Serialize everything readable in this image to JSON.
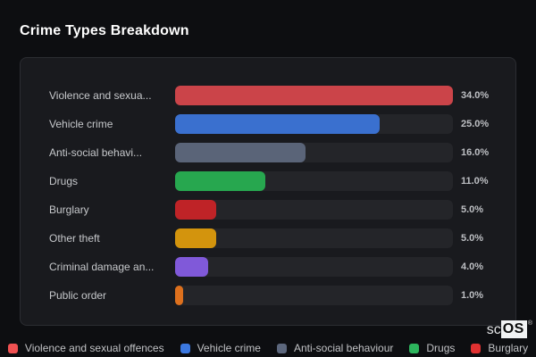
{
  "header": {
    "title": "Crime Types Breakdown"
  },
  "colors": {
    "page_background": "#0d0e11",
    "panel_background": "#191a1e",
    "panel_border": "#2b2d32",
    "bar_track": "#242529",
    "label_text": "#c6c8cb",
    "value_text": "#bdbfc3"
  },
  "chart": {
    "scale_max": 34,
    "rows": [
      {
        "display_label": "Violence and sexua...",
        "value": 34.0,
        "value_label": "34.0%",
        "color": "#cb4449"
      },
      {
        "display_label": "Vehicle crime",
        "value": 25.0,
        "value_label": "25.0%",
        "color": "#3a70cf"
      },
      {
        "display_label": "Anti-social behavi...",
        "value": 16.0,
        "value_label": "16.0%",
        "color": "#5a6478"
      },
      {
        "display_label": "Drugs",
        "value": 11.0,
        "value_label": "11.0%",
        "color": "#27a74f"
      },
      {
        "display_label": "Burglary",
        "value": 5.0,
        "value_label": "5.0%",
        "color": "#bf2327"
      },
      {
        "display_label": "Other theft",
        "value": 5.0,
        "value_label": "5.0%",
        "color": "#d3940d"
      },
      {
        "display_label": "Criminal damage an...",
        "value": 4.0,
        "value_label": "4.0%",
        "color": "#8059d9"
      },
      {
        "display_label": "Public order",
        "value": 1.0,
        "value_label": "1.0%",
        "color": "#dd701d"
      }
    ]
  },
  "legend": {
    "items": [
      {
        "label": "Violence and sexual offences",
        "color": "#f05152"
      },
      {
        "label": "Vehicle crime",
        "color": "#3b78e0"
      },
      {
        "label": "Anti-social behaviour",
        "color": "#5c677d"
      },
      {
        "label": "Drugs",
        "color": "#2db55d"
      },
      {
        "label": "Burglary",
        "color": "#e03131"
      }
    ]
  },
  "logo": {
    "prefix": "sc",
    "boxed": "OS",
    "registered": "®"
  },
  "chart_data": {
    "type": "bar",
    "orientation": "horizontal",
    "title": "Crime Types Breakdown",
    "categories": [
      "Violence and sexual offences",
      "Vehicle crime",
      "Anti-social behaviour",
      "Drugs",
      "Burglary",
      "Other theft",
      "Criminal damage an...",
      "Public order"
    ],
    "values": [
      34.0,
      25.0,
      16.0,
      11.0,
      5.0,
      5.0,
      4.0,
      1.0
    ],
    "unit": "%",
    "value_labels": [
      "34.0%",
      "25.0%",
      "16.0%",
      "11.0%",
      "5.0%",
      "5.0%",
      "4.0%",
      "1.0%"
    ],
    "xlabel": "",
    "ylabel": "",
    "xlim": [
      0,
      34
    ],
    "grid": false,
    "legend_position": "bottom",
    "bar_colors": [
      "#cb4449",
      "#3a70cf",
      "#5a6478",
      "#27a74f",
      "#bf2327",
      "#d3940d",
      "#8059d9",
      "#dd701d"
    ]
  }
}
